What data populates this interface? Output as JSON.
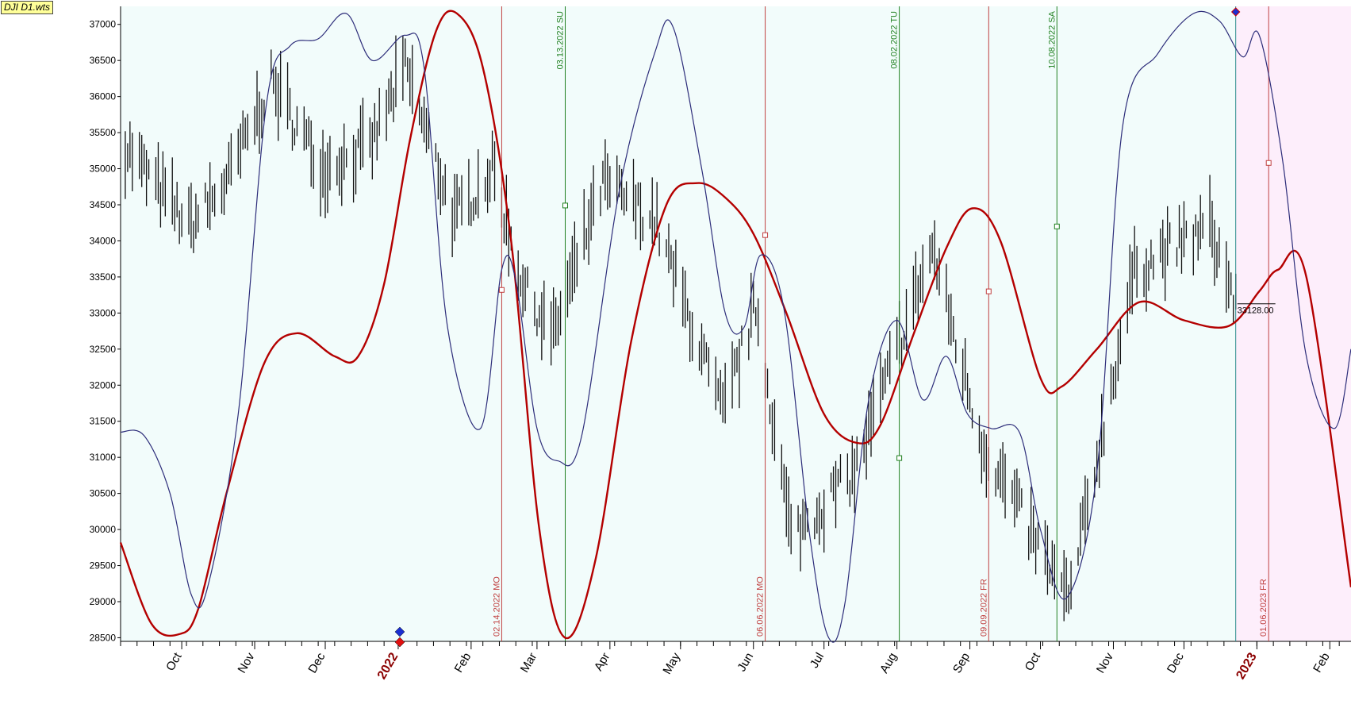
{
  "window": {
    "title": "DJI D1.wts"
  },
  "colors": {
    "background": "#ffffff",
    "plot_bg": "#f2fcfb",
    "future_bg": "#fdeefb",
    "red_curve": "#b40000",
    "blue_curve": "#2d2d7a",
    "red_line": "#c04040",
    "green_line": "#208020",
    "teal_line": "#2a8a8a",
    "bars": "#111111"
  },
  "chart_data": {
    "type": "line",
    "title": "DJI D1.wts",
    "ylim": [
      28450,
      37250
    ],
    "yticks": [
      28500,
      29000,
      29500,
      30000,
      30500,
      31000,
      31500,
      32000,
      32500,
      33000,
      33500,
      34000,
      34500,
      35000,
      35500,
      36000,
      36500,
      37000
    ],
    "ytick_labels": [
      "28500",
      "29000",
      "29500",
      "30000",
      "30500",
      "31000",
      "31500",
      "32000",
      "32500",
      "33000",
      "33500",
      "34000",
      "34500",
      "35000",
      "35500",
      "36000",
      "36500",
      "37000"
    ],
    "xlim": [
      "2021-09-05",
      "2023-02-10"
    ],
    "months": [
      {
        "date": "2021-10-01",
        "label": "Oct"
      },
      {
        "date": "2021-11-01",
        "label": "Nov"
      },
      {
        "date": "2021-12-01",
        "label": "Dec"
      },
      {
        "date": "2022-01-01",
        "label": "2022",
        "year": true
      },
      {
        "date": "2022-02-01",
        "label": "Feb"
      },
      {
        "date": "2022-03-01",
        "label": "Mar"
      },
      {
        "date": "2022-04-01",
        "label": "Apr"
      },
      {
        "date": "2022-05-01",
        "label": "May"
      },
      {
        "date": "2022-06-01",
        "label": "Jun"
      },
      {
        "date": "2022-07-01",
        "label": "Jul"
      },
      {
        "date": "2022-08-01",
        "label": "Aug"
      },
      {
        "date": "2022-09-01",
        "label": "Sep"
      },
      {
        "date": "2022-10-01",
        "label": "Oct"
      },
      {
        "date": "2022-11-01",
        "label": "Nov"
      },
      {
        "date": "2022-12-01",
        "label": "Dec"
      },
      {
        "date": "2023-01-01",
        "label": "2023",
        "year": true
      },
      {
        "date": "2023-02-01",
        "label": "Feb"
      }
    ],
    "forecast_start": "2022-12-23",
    "last_price": {
      "value": 33128,
      "label": "33128.00"
    },
    "vertical_lines": [
      {
        "date": "2022-02-14",
        "label": "02.14.2022 MO",
        "color": "red",
        "label_pos": "bottom",
        "marker_value": 33320
      },
      {
        "date": "2022-03-13",
        "label": "03.13.2022 SU",
        "color": "green",
        "label_pos": "top",
        "marker_value": 34490
      },
      {
        "date": "2022-06-06",
        "label": "06.06.2022 MO",
        "color": "red",
        "label_pos": "bottom",
        "marker_value": 34080
      },
      {
        "date": "2022-08-02",
        "label": "08.02.2022 TU",
        "color": "green",
        "label_pos": "top",
        "marker_value": 30990
      },
      {
        "date": "2022-09-09",
        "label": "09.09.2022 FR",
        "color": "red",
        "label_pos": "bottom",
        "marker_value": 33300
      },
      {
        "date": "2022-10-08",
        "label": "10.08.2022 SA",
        "color": "green",
        "label_pos": "top",
        "marker_value": 34200
      },
      {
        "date": "2023-01-06",
        "label": "01.06.2023 FR",
        "color": "red",
        "label_pos": "bottom",
        "marker_value": 35080
      }
    ],
    "series": [
      {
        "color": "red",
        "x": [
          "2021-09-05",
          "2021-09-18",
          "2021-09-30",
          "2021-10-08",
          "2021-10-20",
          "2021-11-05",
          "2021-11-19",
          "2021-12-05",
          "2021-12-15",
          "2021-12-26",
          "2022-01-06",
          "2022-01-17",
          "2022-01-26",
          "2022-02-06",
          "2022-02-18",
          "2022-03-02",
          "2022-03-13",
          "2022-03-26",
          "2022-04-10",
          "2022-04-25",
          "2022-05-08",
          "2022-05-20",
          "2022-06-01",
          "2022-06-15",
          "2022-07-01",
          "2022-07-15",
          "2022-07-25",
          "2022-08-08",
          "2022-08-22",
          "2022-09-02",
          "2022-09-14",
          "2022-10-01",
          "2022-10-10",
          "2022-10-25",
          "2022-11-12",
          "2022-12-01",
          "2022-12-20",
          "2023-01-02",
          "2023-01-10",
          "2023-01-22",
          "2023-02-10"
        ],
        "values": [
          29820,
          28700,
          28550,
          28900,
          30500,
          32300,
          32720,
          32400,
          32400,
          33400,
          35400,
          36900,
          37150,
          36400,
          34000,
          30000,
          28500,
          29600,
          32600,
          34500,
          34800,
          34600,
          34100,
          33000,
          31600,
          31200,
          31450,
          32700,
          33900,
          34450,
          34000,
          32100,
          31980,
          32500,
          33150,
          32900,
          32820,
          33300,
          33600,
          33500,
          29200
        ]
      },
      {
        "color": "blue",
        "x": [
          "2021-09-05",
          "2021-09-15",
          "2021-09-26",
          "2021-10-05",
          "2021-10-12",
          "2021-10-25",
          "2021-11-06",
          "2021-11-16",
          "2021-11-28",
          "2021-12-10",
          "2021-12-21",
          "2022-01-04",
          "2022-01-12",
          "2022-01-22",
          "2022-02-05",
          "2022-02-14",
          "2022-02-20",
          "2022-03-01",
          "2022-03-10",
          "2022-03-20",
          "2022-04-05",
          "2022-04-20",
          "2022-04-28",
          "2022-05-10",
          "2022-05-20",
          "2022-05-28",
          "2022-06-04",
          "2022-06-14",
          "2022-06-25",
          "2022-07-03",
          "2022-07-10",
          "2022-07-20",
          "2022-08-01",
          "2022-08-12",
          "2022-08-22",
          "2022-08-31",
          "2022-09-10",
          "2022-09-22",
          "2022-10-01",
          "2022-10-12",
          "2022-10-25",
          "2022-11-05",
          "2022-11-20",
          "2022-12-05",
          "2022-12-16",
          "2022-12-26",
          "2023-01-02",
          "2023-01-12",
          "2023-01-22",
          "2023-02-03",
          "2023-02-10"
        ],
        "values": [
          31350,
          31300,
          30500,
          29100,
          29200,
          31600,
          35900,
          36700,
          36800,
          37150,
          36500,
          36850,
          36400,
          32800,
          31400,
          33600,
          33450,
          31400,
          30950,
          31300,
          34700,
          36600,
          36950,
          35000,
          33000,
          32800,
          33800,
          33050,
          29900,
          28500,
          29000,
          31800,
          32900,
          31800,
          32400,
          31600,
          31400,
          31350,
          30000,
          29050,
          30800,
          35600,
          36600,
          37150,
          37050,
          36550,
          36850,
          35100,
          32400,
          31400,
          32500
        ]
      }
    ]
  }
}
